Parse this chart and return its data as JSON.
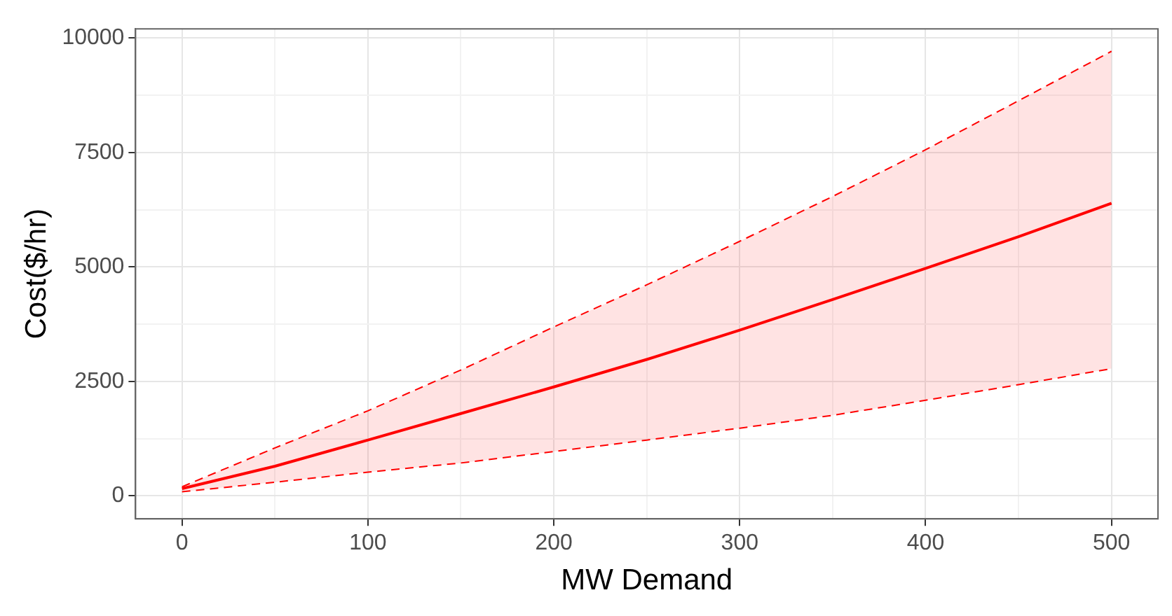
{
  "chart_data": {
    "type": "line",
    "xlabel": "MW Demand",
    "ylabel": "Cost($/hr)",
    "x": [
      0,
      50,
      100,
      150,
      200,
      250,
      300,
      350,
      400,
      450,
      500
    ],
    "series": [
      {
        "color": "#ff0000",
        "values": [
          160,
          650,
          1220,
          1800,
          2380,
          2980,
          3620,
          4290,
          4970,
          5660,
          6390
        ],
        "lower": [
          90,
          300,
          520,
          720,
          970,
          1220,
          1480,
          1760,
          2090,
          2430,
          2780
        ],
        "upper": [
          200,
          1050,
          1860,
          2750,
          3690,
          4610,
          5560,
          6540,
          7560,
          8630,
          9710
        ]
      },
      {
        "color": "#ff0000",
        "line_style": "dashed",
        "values": [
          200,
          1050,
          1860,
          2750,
          3690,
          4610,
          5560,
          6540,
          7560,
          8630,
          9710
        ]
      },
      {
        "color": "#ff0000",
        "line_style": "dashed",
        "values": [
          90,
          300,
          520,
          720,
          970,
          1220,
          1480,
          1760,
          2090,
          2430,
          2780
        ]
      }
    ],
    "xlim": [
      -25,
      525
    ],
    "xticks": [
      0,
      {
        "value": 50,
        "label": null
      },
      100,
      {
        "value": 150,
        "label": null
      },
      200,
      {
        "value": 250,
        "label": null
      },
      300,
      {
        "value": 350,
        "label": null
      },
      400,
      {
        "value": 450,
        "label": null
      },
      500
    ],
    "ylim": [
      -500,
      10200
    ],
    "yticks": [
      0,
      {
        "value": 1250,
        "label": null
      },
      2500,
      {
        "value": 3750,
        "label": null
      },
      5000,
      {
        "value": 6250,
        "label": null
      },
      7500,
      {
        "value": 8750,
        "label": null
      },
      10000
    ],
    "grid": true,
    "legend": false,
    "marker": "none",
    "line_style": "solid"
  }
}
